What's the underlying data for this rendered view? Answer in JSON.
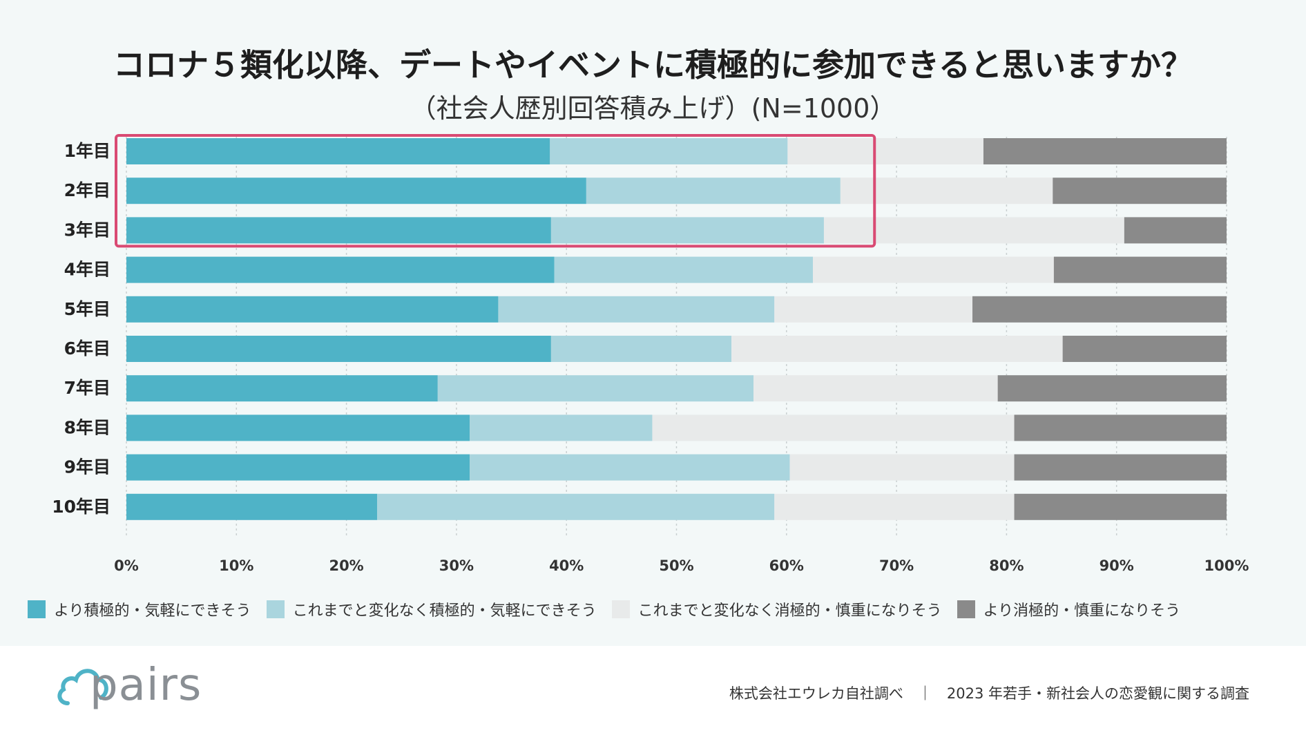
{
  "title": "コロナ５類化以降、デートやイベントに積極的に参加できると思いますか？",
  "subtitle": "（社会人歴別回答積み上げ）(N=1000）",
  "brand": "pairs",
  "footer": "株式会社エウレカ自社調べ　｜　2023 年若手・新社会人の恋愛観に関する調査",
  "colors": {
    "background": "#f3f8f8",
    "highlight": "#d94a73",
    "series": [
      "#4fb3c7",
      "#aad5de",
      "#e8eaea",
      "#8a8a8a"
    ]
  },
  "chart_data": {
    "type": "bar",
    "orientation": "horizontal",
    "stacked": true,
    "categories": [
      "1年目",
      "2年目",
      "3年目",
      "4年目",
      "5年目",
      "6年目",
      "7年目",
      "8年目",
      "9年目",
      "10年目"
    ],
    "series": [
      {
        "name": "より積極的・気軽にできそう",
        "values": [
          38.5,
          41.8,
          38.6,
          38.9,
          33.8,
          38.6,
          28.3,
          31.2,
          31.2,
          22.8
        ]
      },
      {
        "name": "これまでと変化なく積極的・気軽にできそう",
        "values": [
          21.6,
          23.1,
          24.8,
          23.5,
          25.1,
          16.4,
          28.7,
          16.6,
          29.1,
          36.1
        ]
      },
      {
        "name": "これまでと変化なく消極的・慎重になりそう",
        "values": [
          17.8,
          19.3,
          27.3,
          21.9,
          18.0,
          30.1,
          22.2,
          32.9,
          20.4,
          21.8
        ]
      },
      {
        "name": "より消極的・慎重になりそう",
        "values": [
          22.1,
          15.8,
          9.3,
          15.7,
          23.1,
          14.9,
          20.8,
          19.3,
          19.3,
          19.3
        ]
      }
    ],
    "x_ticks": [
      "0%",
      "10%",
      "20%",
      "30%",
      "40%",
      "50%",
      "60%",
      "70%",
      "80%",
      "90%",
      "100%"
    ],
    "xlim": [
      0,
      100
    ],
    "grid": true,
    "highlight": {
      "categories": [
        "1年目",
        "2年目",
        "3年目"
      ],
      "x_end": 68
    }
  }
}
